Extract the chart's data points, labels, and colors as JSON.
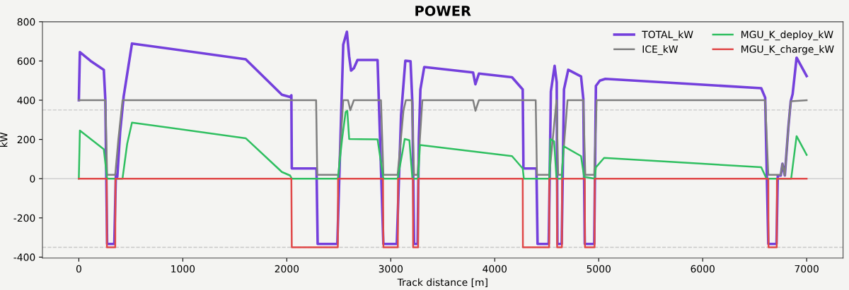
{
  "chart_data": {
    "type": "line",
    "title": "POWER",
    "xlabel": "Track distance [m]",
    "ylabel": "kW",
    "xlim": [
      -350,
      7350
    ],
    "ylim": [
      -405,
      800
    ],
    "xticks": [
      0,
      1000,
      2000,
      3000,
      4000,
      5000,
      6000,
      7000
    ],
    "yticks": [
      -400,
      -200,
      0,
      200,
      400,
      600,
      800
    ],
    "grid": false,
    "legend": "top right",
    "line_style": "solid",
    "marker": "none",
    "ref_lines": [
      {
        "axis": "y",
        "value": 350,
        "color": "#c8c8c8",
        "line_style": "dashed"
      },
      {
        "axis": "y",
        "value": -350,
        "color": "#c8c8c8",
        "line_style": "dashed"
      },
      {
        "axis": "y",
        "value": 0,
        "color": "#d0d0d0",
        "line_style": "solid"
      }
    ],
    "series": [
      {
        "name": "TOTAL_kW",
        "color": "#7440dc",
        "x": [
          0,
          10,
          114,
          240,
          255,
          272,
          341,
          356,
          370,
          397,
          431,
          511,
          1605,
          1953,
          2032,
          2044,
          2048,
          2286,
          2297,
          2486,
          2543,
          2578,
          2600,
          2618,
          2645,
          2680,
          2873,
          2929,
          3058,
          3099,
          3140,
          3190,
          3208,
          3224,
          3258,
          3270,
          3285,
          3322,
          3792,
          3814,
          3848,
          4166,
          4269,
          4276,
          4401,
          4412,
          4519,
          4540,
          4576,
          4596,
          4603,
          4644,
          4666,
          4707,
          4830,
          4852,
          4866,
          4957,
          4973,
          5011,
          5064,
          6563,
          6601,
          6631,
          6710,
          6722,
          6751,
          6767,
          6790,
          6824,
          6847,
          6865,
          6903,
          7000
        ],
        "values": [
          400,
          645,
          600,
          555,
          400,
          -333,
          -333,
          20,
          10,
          238,
          419,
          689,
          609,
          428,
          416,
          425,
          52,
          52,
          -333,
          -333,
          683,
          749,
          623,
          551,
          563,
          605,
          605,
          -333,
          -333,
          322,
          601,
          599,
          383,
          -333,
          -333,
          202,
          455,
          569,
          541,
          481,
          536,
          517,
          455,
          52,
          52,
          -333,
          -333,
          445,
          575,
          491,
          -333,
          -333,
          455,
          555,
          521,
          407,
          -333,
          -333,
          473,
          500,
          509,
          461,
          413,
          -333,
          -333,
          16,
          16,
          76,
          16,
          262,
          395,
          431,
          617,
          523
        ]
      },
      {
        "name": "ICE_kW",
        "color": "#7f7f7f",
        "x": [
          0,
          255,
          272,
          350,
          380,
          420,
          2282,
          2293,
          2498,
          2543,
          2589,
          2611,
          2645,
          2906,
          2929,
          3066,
          3122,
          3145,
          3202,
          3224,
          3258,
          3304,
          3792,
          3814,
          3848,
          4394,
          4406,
          4525,
          4594,
          4610,
          4644,
          4700,
          4852,
          4871,
          4957,
          4980,
          6601,
          6631,
          6751,
          6767,
          6790,
          6824,
          6847,
          7000
        ],
        "values": [
          400,
          400,
          20,
          20,
          200,
          400,
          400,
          20,
          20,
          400,
          400,
          349,
          400,
          400,
          20,
          20,
          346,
          400,
          400,
          20,
          20,
          400,
          400,
          346,
          400,
          400,
          20,
          20,
          400,
          20,
          20,
          400,
          400,
          20,
          20,
          400,
          400,
          20,
          20,
          76,
          16,
          262,
          395,
          400
        ]
      },
      {
        "name": "MGU_K_deploy_kW",
        "color": "#2fbf60",
        "x": [
          0,
          10,
          240,
          272,
          420,
          465,
          511,
          1605,
          1953,
          2032,
          2048,
          2491,
          2532,
          2566,
          2582,
          2600,
          2873,
          2929,
          3066,
          3111,
          3134,
          3179,
          3208,
          3263,
          3281,
          4166,
          4269,
          4280,
          4526,
          4535,
          4571,
          4594,
          4644,
          4662,
          4830,
          4859,
          4962,
          4973,
          5052,
          6563,
          6614,
          6851,
          6903,
          7000
        ],
        "values": [
          0,
          245,
          150,
          0,
          0,
          178,
          286,
          206,
          34,
          16,
          0,
          0,
          202,
          340,
          346,
          202,
          200,
          0,
          0,
          130,
          202,
          196,
          0,
          0,
          172,
          115,
          52,
          0,
          0,
          202,
          190,
          0,
          0,
          166,
          115,
          10,
          0,
          58,
          106,
          58,
          0,
          0,
          217,
          121
        ]
      },
      {
        "name": "MGU_K_charge_kW",
        "color": "#e04848",
        "x": [
          0,
          268,
          270,
          350,
          352,
          2044,
          2048,
          2491,
          2493,
          2925,
          2929,
          3068,
          3070,
          3213,
          3215,
          3263,
          3265,
          4269,
          4271,
          4523,
          4525,
          4598,
          4600,
          4646,
          4648,
          4866,
          4868,
          4960,
          4962,
          6631,
          6633,
          6712,
          6714,
          7000
        ],
        "values": [
          0,
          0,
          -350,
          -350,
          0,
          0,
          -350,
          -350,
          0,
          0,
          -350,
          -350,
          0,
          0,
          -350,
          -350,
          0,
          0,
          -350,
          -350,
          0,
          0,
          -350,
          -350,
          0,
          0,
          -350,
          -350,
          0,
          0,
          -350,
          -350,
          0,
          0
        ]
      }
    ]
  }
}
